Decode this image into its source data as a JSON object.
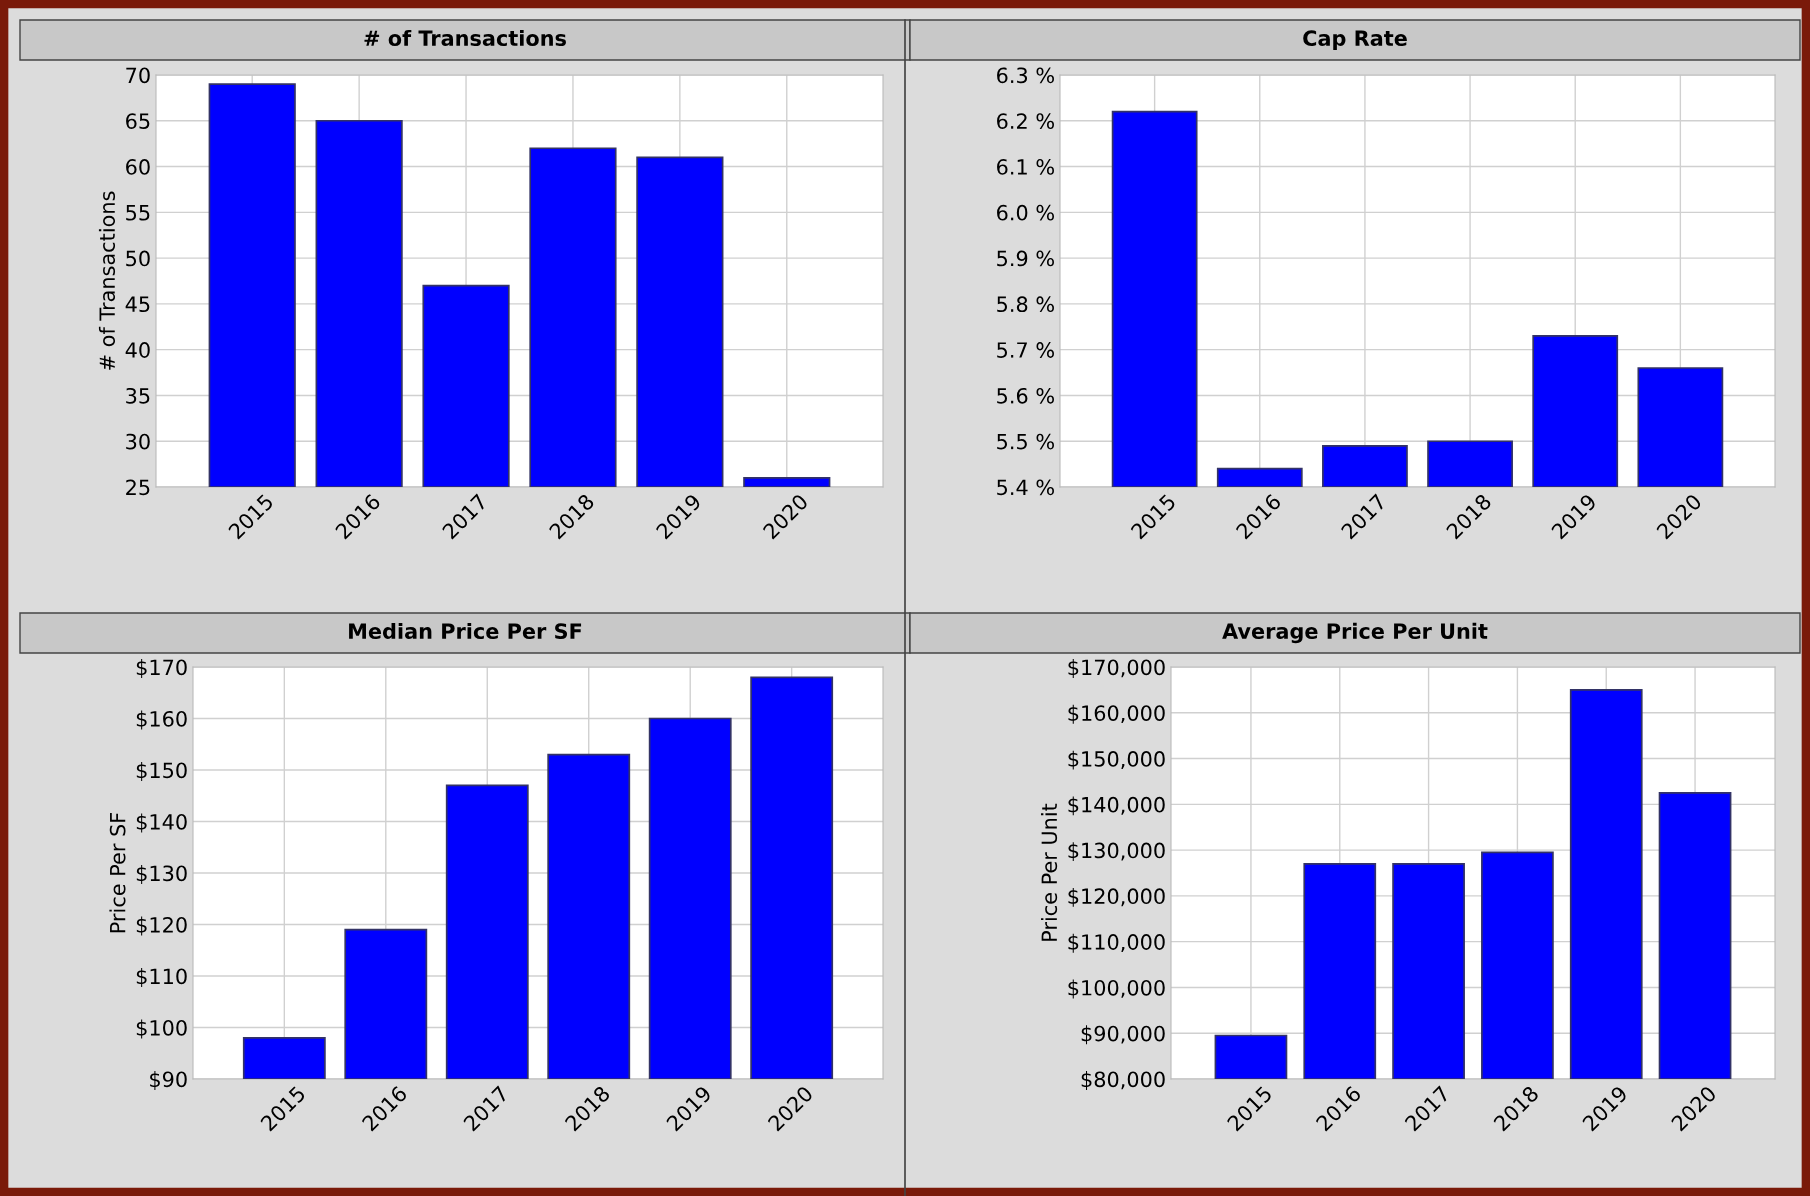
{
  "chart_data": [
    {
      "type": "bar",
      "title": "# of Transactions",
      "ylabel": "# of Transactions",
      "categories": [
        "2015",
        "2016",
        "2017",
        "2018",
        "2019",
        "2020"
      ],
      "values": [
        69,
        65,
        47,
        62,
        61,
        26
      ],
      "color": "#0000ff",
      "ylim": [
        25,
        70
      ],
      "yticks": [
        25,
        30,
        35,
        40,
        45,
        50,
        55,
        60,
        65,
        70
      ],
      "grid": true
    },
    {
      "type": "bar",
      "title": "Cap Rate",
      "categories": [
        "2015",
        "2016",
        "2017",
        "2018",
        "2019",
        "2020"
      ],
      "values": [
        6.22,
        5.44,
        5.49,
        5.5,
        5.73,
        5.66
      ],
      "color": "#0000ff",
      "ylim": [
        5.4,
        6.3
      ],
      "yticks": [
        {
          "value": 5.4,
          "label": "5.4 %"
        },
        {
          "value": 5.5,
          "label": "5.5 %"
        },
        {
          "value": 5.6,
          "label": "5.6 %"
        },
        {
          "value": 5.7,
          "label": "5.7 %"
        },
        {
          "value": 5.8,
          "label": "5.8 %"
        },
        {
          "value": 5.9,
          "label": "5.9 %"
        },
        {
          "value": 6.0,
          "label": "6.0 %"
        },
        {
          "value": 6.1,
          "label": "6.1 %"
        },
        {
          "value": 6.2,
          "label": "6.2 %"
        },
        {
          "value": 6.3,
          "label": "6.3 %"
        }
      ],
      "grid": true
    },
    {
      "type": "bar",
      "title": "Median Price Per SF",
      "ylabel": "Price Per SF",
      "categories": [
        "2015",
        "2016",
        "2017",
        "2018",
        "2019",
        "2020"
      ],
      "values": [
        98,
        119,
        147,
        153,
        160,
        168
      ],
      "color": "#0000ff",
      "ylim": [
        90,
        170
      ],
      "yticks": [
        {
          "value": 90,
          "label": "$90"
        },
        {
          "value": 100,
          "label": "$100"
        },
        {
          "value": 110,
          "label": "$110"
        },
        {
          "value": 120,
          "label": "$120"
        },
        {
          "value": 130,
          "label": "$130"
        },
        {
          "value": 140,
          "label": "$140"
        },
        {
          "value": 150,
          "label": "$150"
        },
        {
          "value": 160,
          "label": "$160"
        },
        {
          "value": 170,
          "label": "$170"
        }
      ],
      "grid": true
    },
    {
      "type": "bar",
      "title": "Average Price Per Unit",
      "ylabel": "Price Per Unit",
      "categories": [
        "2015",
        "2016",
        "2017",
        "2018",
        "2019",
        "2020"
      ],
      "values": [
        89500,
        127000,
        127000,
        129500,
        165000,
        142500
      ],
      "color": "#0000ff",
      "ylim": [
        80000,
        170000
      ],
      "yticks": [
        {
          "value": 80000,
          "label": "$80,000"
        },
        {
          "value": 90000,
          "label": "$90,000"
        },
        {
          "value": 100000,
          "label": "$100,000"
        },
        {
          "value": 110000,
          "label": "$110,000"
        },
        {
          "value": 120000,
          "label": "$120,000"
        },
        {
          "value": 130000,
          "label": "$130,000"
        },
        {
          "value": 140000,
          "label": "$140,000"
        },
        {
          "value": 150000,
          "label": "$150,000"
        },
        {
          "value": 160000,
          "label": "$160,000"
        },
        {
          "value": 170000,
          "label": "$170,000"
        }
      ],
      "grid": true
    }
  ]
}
